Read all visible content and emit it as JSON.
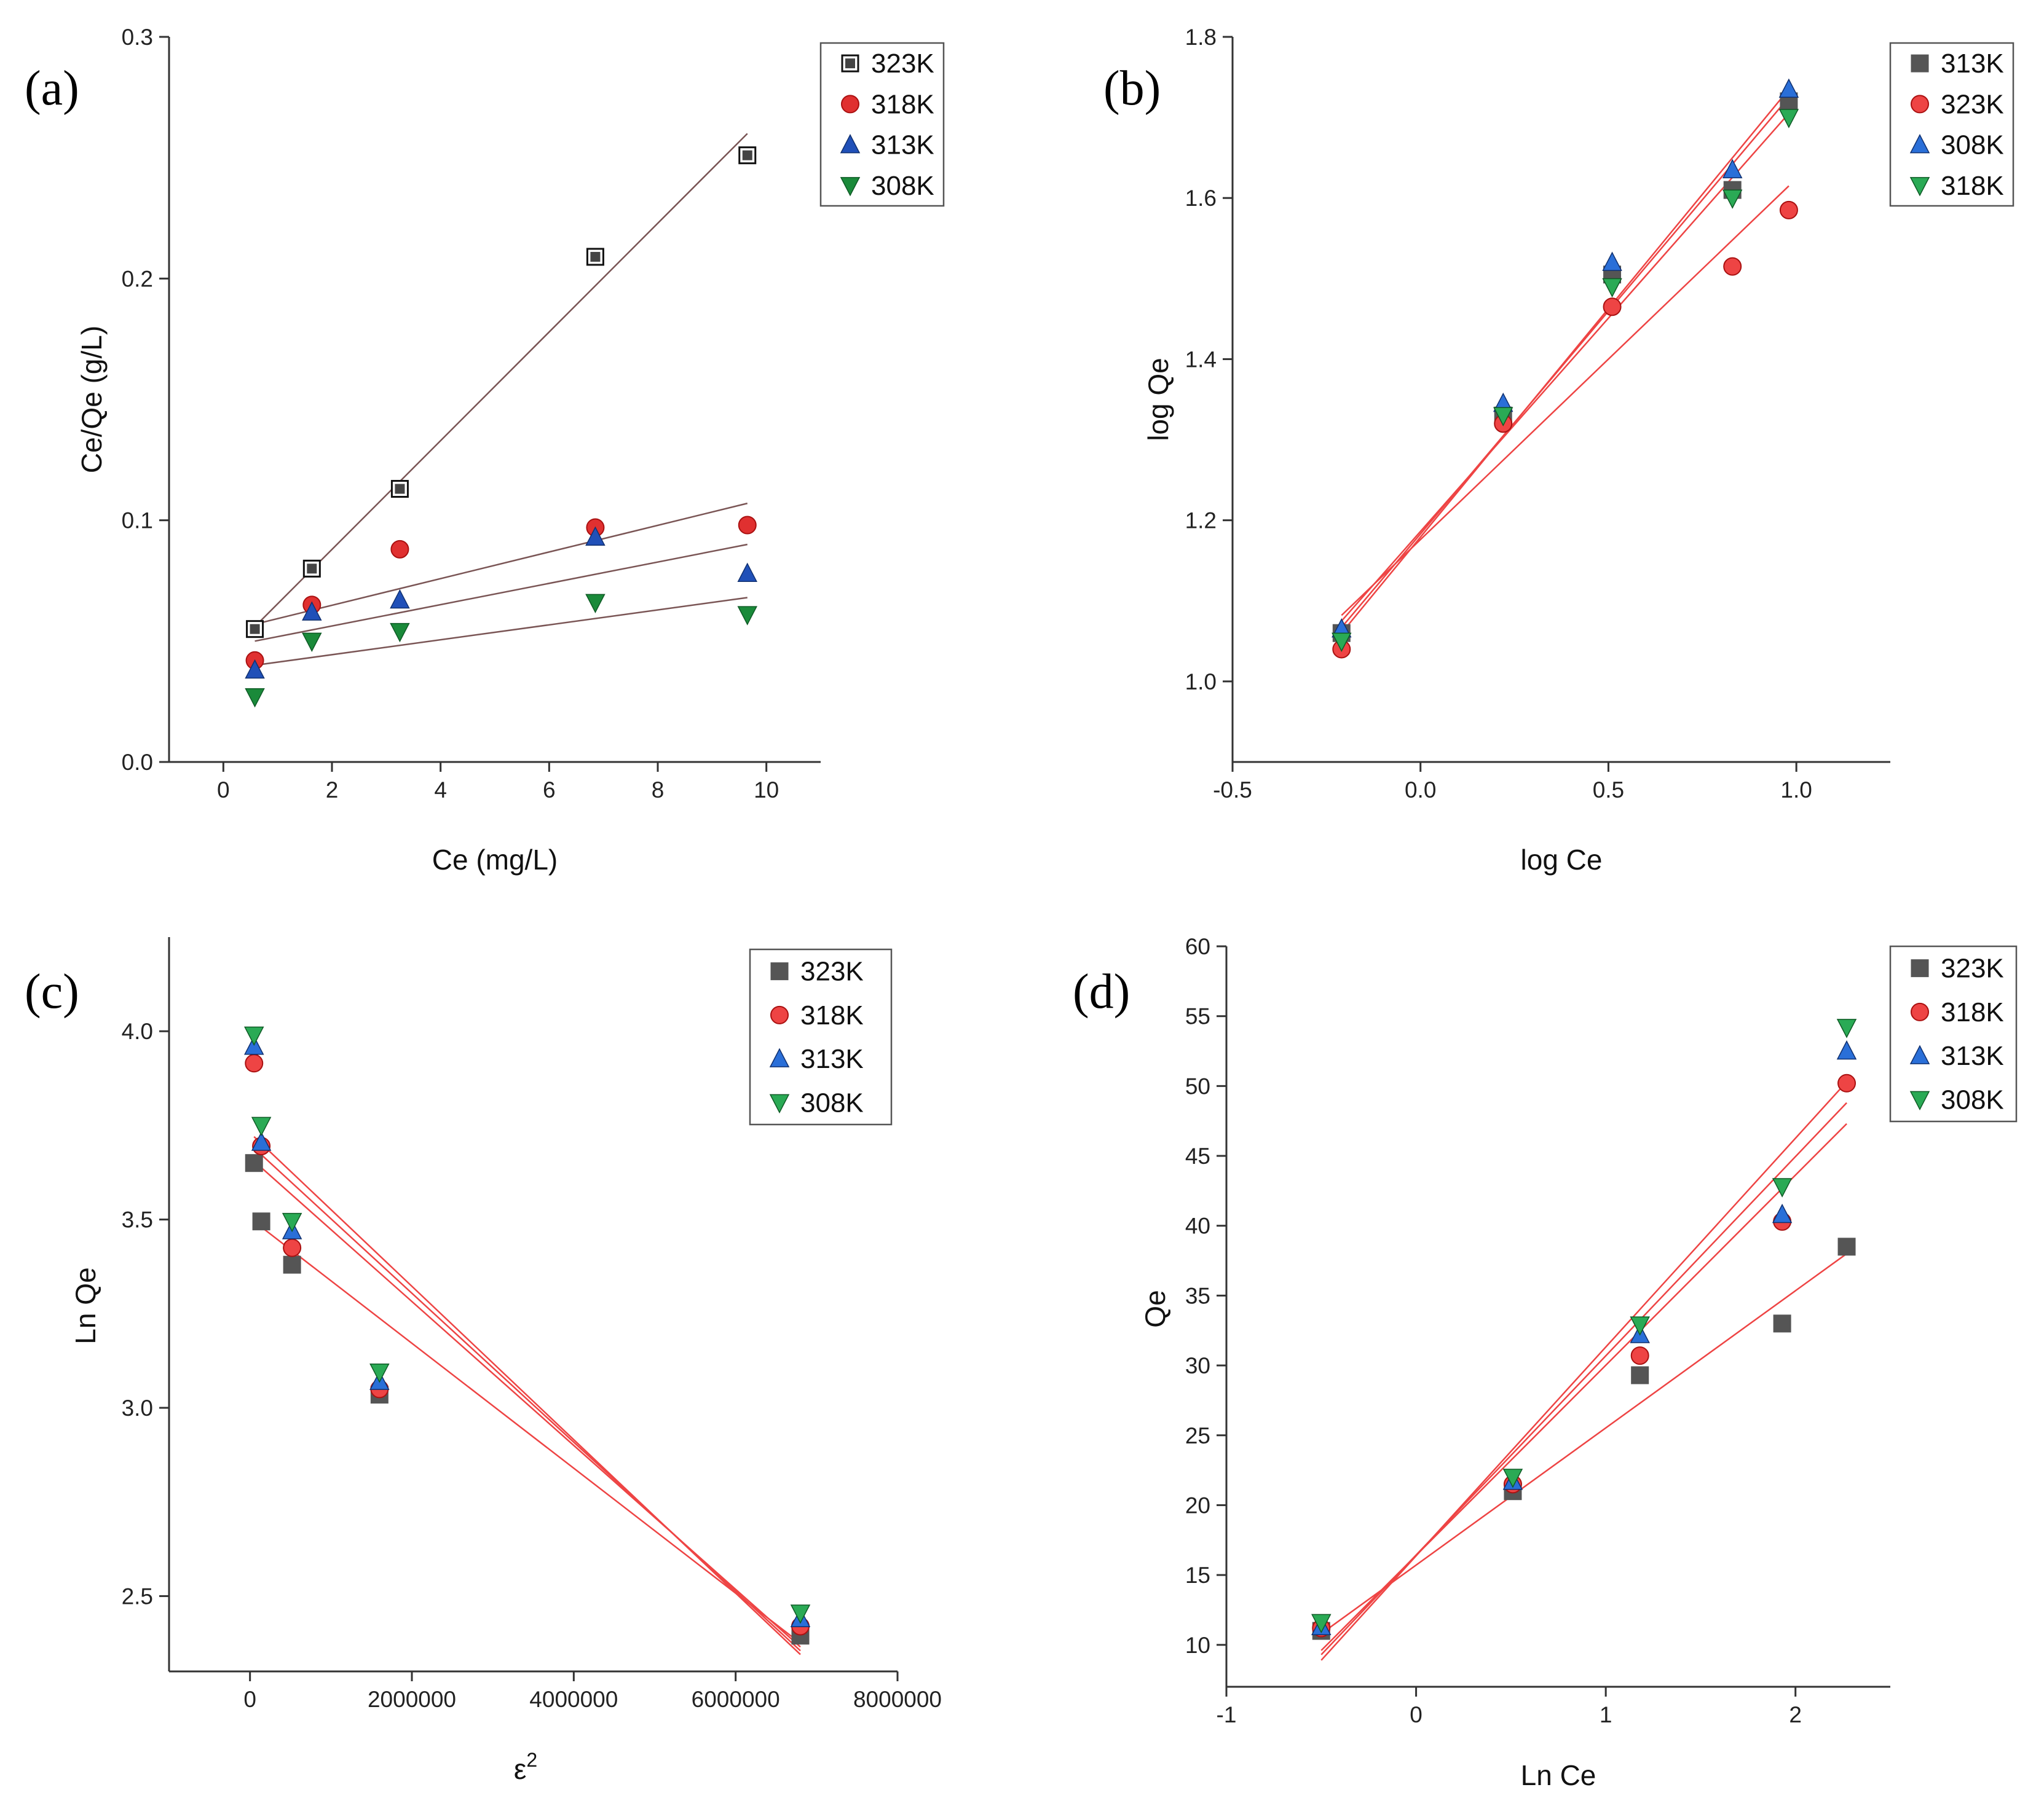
{
  "chart_data": [
    {
      "panel": "(a)",
      "type": "scatter",
      "xlabel": "Ce (mg/L)",
      "ylabel": "Ce/Qe (g/L)",
      "xlim": [
        -1,
        11
      ],
      "ylim": [
        0,
        0.3
      ],
      "xticks": [
        0,
        2,
        4,
        6,
        8,
        10
      ],
      "xtick_labels": [
        "0",
        "2",
        "4",
        "6",
        "8",
        "10"
      ],
      "yticks": [
        0.0,
        0.1,
        0.2,
        0.3
      ],
      "ytick_labels": [
        "0.0",
        "0.1",
        "0.2",
        "0.3"
      ],
      "legend_position": "top-right",
      "fit_color": "#7a5555",
      "series": [
        {
          "name": "323K",
          "marker": "square-outline",
          "color": "#444444",
          "x": [
            0.58,
            1.63,
            3.25,
            6.85,
            9.65
          ],
          "y": [
            0.055,
            0.08,
            0.113,
            0.209,
            0.251
          ],
          "fit": [
            [
              0.58,
              0.056
            ],
            [
              9.65,
              0.26
            ]
          ]
        },
        {
          "name": "318K",
          "marker": "circle",
          "color": "#e03030",
          "x": [
            0.58,
            1.63,
            3.25,
            6.85,
            9.65
          ],
          "y": [
            0.042,
            0.065,
            0.088,
            0.097,
            0.098
          ],
          "fit": [
            [
              0.58,
              0.057
            ],
            [
              9.65,
              0.107
            ]
          ]
        },
        {
          "name": "313K",
          "marker": "triangle-up",
          "color": "#2050b8",
          "x": [
            0.58,
            1.63,
            3.25,
            6.85,
            9.65
          ],
          "y": [
            0.038,
            0.062,
            0.067,
            0.093,
            0.078
          ],
          "fit": [
            [
              0.58,
              0.05
            ],
            [
              9.65,
              0.09
            ]
          ]
        },
        {
          "name": "308K",
          "marker": "triangle-down",
          "color": "#1a8a3a",
          "x": [
            0.58,
            1.63,
            3.25,
            6.85,
            9.65
          ],
          "y": [
            0.027,
            0.05,
            0.054,
            0.066,
            0.061
          ],
          "fit": [
            [
              0.58,
              0.04
            ],
            [
              9.65,
              0.068
            ]
          ]
        }
      ]
    },
    {
      "panel": "(b)",
      "type": "scatter",
      "xlabel": "log Ce",
      "ylabel": "log Qe",
      "xlim": [
        -0.5,
        1.25
      ],
      "ylim": [
        0.9,
        1.8
      ],
      "xticks": [
        -0.5,
        0.0,
        0.5,
        1.0
      ],
      "xtick_labels": [
        "-0.5",
        "0.0",
        "0.5",
        "1.0"
      ],
      "yticks": [
        1.0,
        1.2,
        1.4,
        1.6,
        1.8
      ],
      "ytick_labels": [
        "1.0",
        "1.2",
        "1.4",
        "1.6",
        "1.8"
      ],
      "legend_position": "top-right",
      "fit_color": "#ee4444",
      "series": [
        {
          "name": "313K",
          "marker": "square",
          "color": "#555555",
          "x": [
            -0.21,
            0.22,
            0.51,
            0.83,
            0.98
          ],
          "y": [
            1.06,
            1.33,
            1.505,
            1.61,
            1.72
          ],
          "fit": [
            [
              -0.21,
              1.067
            ],
            [
              0.98,
              1.725
            ]
          ]
        },
        {
          "name": "323K",
          "marker": "circle",
          "color": "#ee4444",
          "x": [
            -0.21,
            0.22,
            0.51,
            0.83,
            0.98
          ],
          "y": [
            1.04,
            1.32,
            1.465,
            1.515,
            1.585
          ],
          "fit": [
            [
              -0.21,
              1.082
            ],
            [
              0.98,
              1.615
            ]
          ]
        },
        {
          "name": "308K",
          "marker": "triangle-up",
          "color": "#2a6fd8",
          "x": [
            -0.21,
            0.22,
            0.51,
            0.83,
            0.98
          ],
          "y": [
            1.065,
            1.345,
            1.52,
            1.635,
            1.735
          ],
          "fit": [
            [
              -0.21,
              1.06
            ],
            [
              0.98,
              1.735
            ]
          ]
        },
        {
          "name": "318K",
          "marker": "triangle-down",
          "color": "#2aaa55",
          "x": [
            -0.21,
            0.22,
            0.51,
            0.83,
            0.98
          ],
          "y": [
            1.05,
            1.33,
            1.49,
            1.6,
            1.7
          ],
          "fit": [
            [
              -0.21,
              1.075
            ],
            [
              0.98,
              1.705
            ]
          ]
        }
      ]
    },
    {
      "panel": "(c)",
      "type": "scatter",
      "xlabel": "ε",
      "xlabel_superscript": "2",
      "ylabel": "Ln Qe",
      "xlim": [
        -1000000,
        8000000
      ],
      "ylim": [
        2.3,
        4.25
      ],
      "xticks": [
        0,
        2000000,
        4000000,
        6000000,
        8000000
      ],
      "xtick_labels": [
        "0",
        "2000000",
        "4000000",
        "6000000",
        "8000000"
      ],
      "yticks": [
        2.5,
        3.0,
        3.5,
        4.0
      ],
      "ytick_labels": [
        "2.5",
        "3.0",
        "3.5",
        "4.0"
      ],
      "legend_position": "top-right",
      "fit_color": "#ee4444",
      "series": [
        {
          "name": "323K",
          "marker": "square",
          "color": "#555555",
          "x": [
            50000,
            140000,
            520000,
            1600000,
            6800000
          ],
          "y": [
            3.65,
            3.495,
            3.38,
            3.035,
            2.395
          ],
          "fit": [
            [
              50000,
              3.495
            ],
            [
              6800000,
              2.375
            ]
          ]
        },
        {
          "name": "318K",
          "marker": "circle",
          "color": "#ee4444",
          "x": [
            50000,
            140000,
            520000,
            1600000,
            6800000
          ],
          "y": [
            3.915,
            3.695,
            3.425,
            3.05,
            2.42
          ],
          "fit": [
            [
              50000,
              3.655
            ],
            [
              6800000,
              2.365
            ]
          ]
        },
        {
          "name": "313K",
          "marker": "triangle-up",
          "color": "#2a6fd8",
          "x": [
            50000,
            140000,
            520000,
            1600000,
            6800000
          ],
          "y": [
            3.96,
            3.705,
            3.47,
            3.07,
            2.44
          ],
          "fit": [
            [
              50000,
              3.69
            ],
            [
              6800000,
              2.355
            ]
          ]
        },
        {
          "name": "308K",
          "marker": "triangle-down",
          "color": "#2aaa55",
          "x": [
            50000,
            140000,
            520000,
            1600000,
            6800000
          ],
          "y": [
            3.99,
            3.75,
            3.495,
            3.095,
            2.455
          ],
          "fit": [
            [
              50000,
              3.72
            ],
            [
              6800000,
              2.345
            ]
          ]
        }
      ]
    },
    {
      "panel": "(d)",
      "type": "scatter",
      "xlabel": "Ln Ce",
      "ylabel": "Qe",
      "xlim": [
        -1,
        2.5
      ],
      "ylim": [
        7,
        60
      ],
      "xticks": [
        -1,
        0,
        1,
        2
      ],
      "xtick_labels": [
        "-1",
        "0",
        "1",
        "2"
      ],
      "yticks": [
        10,
        15,
        20,
        25,
        30,
        35,
        40,
        45,
        50,
        55,
        60
      ],
      "ytick_labels": [
        "10",
        "15",
        "20",
        "25",
        "30",
        "35",
        "40",
        "45",
        "50",
        "55",
        "60"
      ],
      "legend_position": "top-right",
      "fit_color": "#ee4444",
      "series": [
        {
          "name": "323K",
          "marker": "square",
          "color": "#555555",
          "x": [
            -0.5,
            0.51,
            1.18,
            1.93,
            2.27
          ],
          "y": [
            11.0,
            21.0,
            29.3,
            33.0,
            38.5
          ],
          "fit": [
            [
              -0.5,
              10.8
            ],
            [
              2.27,
              38.0
            ]
          ]
        },
        {
          "name": "318K",
          "marker": "circle",
          "color": "#ee4444",
          "x": [
            -0.5,
            0.51,
            1.18,
            1.93,
            2.27
          ],
          "y": [
            11.2,
            21.5,
            30.7,
            40.3,
            50.2
          ],
          "fit": [
            [
              -0.5,
              9.6
            ],
            [
              2.27,
              47.3
            ]
          ]
        },
        {
          "name": "313K",
          "marker": "triangle-up",
          "color": "#2a6fd8",
          "x": [
            -0.5,
            0.51,
            1.18,
            1.93,
            2.27
          ],
          "y": [
            11.3,
            21.7,
            32.2,
            40.8,
            52.5
          ],
          "fit": [
            [
              -0.5,
              9.3
            ],
            [
              2.27,
              48.8
            ]
          ]
        },
        {
          "name": "308K",
          "marker": "triangle-down",
          "color": "#2aaa55",
          "x": [
            -0.5,
            0.51,
            1.18,
            1.93,
            2.27
          ],
          "y": [
            11.6,
            22.0,
            32.9,
            42.8,
            54.2
          ],
          "fit": [
            [
              -0.5,
              8.9
            ],
            [
              2.27,
              50.3
            ]
          ]
        }
      ]
    }
  ]
}
